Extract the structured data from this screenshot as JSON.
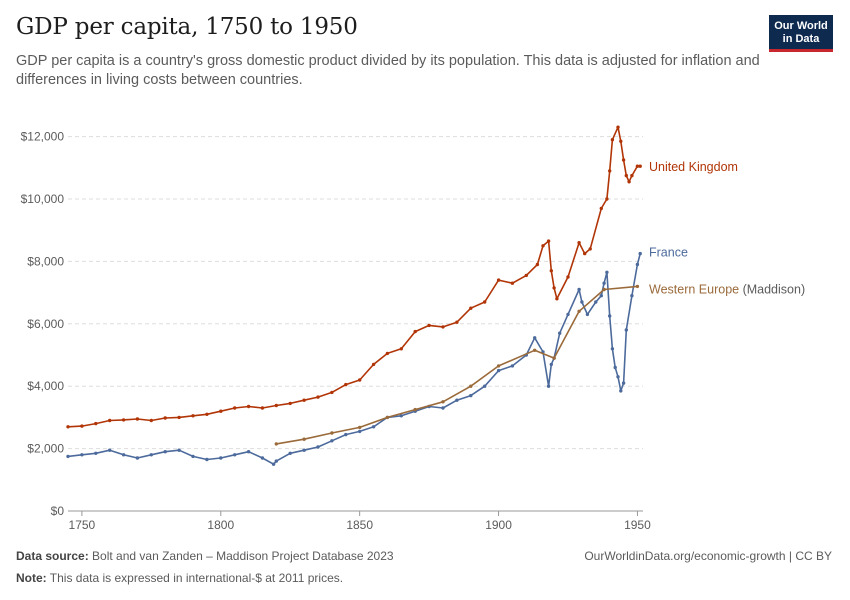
{
  "title": "GDP per capita, 1750 to 1950",
  "subtitle": "GDP per capita is a country's gross domestic product divided by its population. This data is adjusted for inflation and differences in living costs between countries.",
  "logo": {
    "line1": "Our World",
    "line2": "in Data"
  },
  "footer": {
    "source_label": "Data source:",
    "source_text": "Bolt and van Zanden – Maddison Project Database 2023",
    "note_label": "Note:",
    "note_text": "This data is expressed in international-$ at 2011 prices.",
    "link_text": "OurWorldinData.org/economic-growth | CC BY"
  },
  "chart_data": {
    "type": "line",
    "title": "GDP per capita, 1750 to 1950",
    "xlim": [
      1745,
      1952
    ],
    "ylim": [
      0,
      12500
    ],
    "x_ticks": [
      1750,
      1800,
      1850,
      1900,
      1950
    ],
    "y_ticks": [
      {
        "value": 0,
        "label": "$0"
      },
      {
        "value": 2000,
        "label": "$2,000"
      },
      {
        "value": 4000,
        "label": "$4,000"
      },
      {
        "value": 6000,
        "label": "$6,000"
      },
      {
        "value": 8000,
        "label": "$8,000"
      },
      {
        "value": 10000,
        "label": "$10,000"
      },
      {
        "value": 12000,
        "label": "$12,000"
      }
    ],
    "grid": "horizontal dashed",
    "legend": "inline labels at line ends (right)",
    "series": [
      {
        "name": "United Kingdom",
        "color": "#b13507",
        "points": [
          [
            1745,
            2700
          ],
          [
            1750,
            2720
          ],
          [
            1755,
            2800
          ],
          [
            1760,
            2900
          ],
          [
            1765,
            2920
          ],
          [
            1770,
            2950
          ],
          [
            1775,
            2900
          ],
          [
            1780,
            2980
          ],
          [
            1785,
            3000
          ],
          [
            1790,
            3050
          ],
          [
            1795,
            3100
          ],
          [
            1800,
            3200
          ],
          [
            1805,
            3300
          ],
          [
            1810,
            3350
          ],
          [
            1815,
            3300
          ],
          [
            1820,
            3380
          ],
          [
            1825,
            3450
          ],
          [
            1830,
            3550
          ],
          [
            1835,
            3650
          ],
          [
            1840,
            3800
          ],
          [
            1845,
            4050
          ],
          [
            1850,
            4200
          ],
          [
            1855,
            4700
          ],
          [
            1860,
            5050
          ],
          [
            1865,
            5200
          ],
          [
            1870,
            5750
          ],
          [
            1875,
            5950
          ],
          [
            1880,
            5900
          ],
          [
            1885,
            6050
          ],
          [
            1890,
            6500
          ],
          [
            1895,
            6700
          ],
          [
            1900,
            7400
          ],
          [
            1905,
            7300
          ],
          [
            1910,
            7550
          ],
          [
            1914,
            7900
          ],
          [
            1916,
            8500
          ],
          [
            1918,
            8650
          ],
          [
            1919,
            7700
          ],
          [
            1920,
            7150
          ],
          [
            1921,
            6800
          ],
          [
            1925,
            7500
          ],
          [
            1929,
            8600
          ],
          [
            1931,
            8250
          ],
          [
            1933,
            8400
          ],
          [
            1937,
            9700
          ],
          [
            1939,
            10000
          ],
          [
            1940,
            10900
          ],
          [
            1941,
            11900
          ],
          [
            1943,
            12300
          ],
          [
            1944,
            11850
          ],
          [
            1945,
            11250
          ],
          [
            1946,
            10750
          ],
          [
            1947,
            10550
          ],
          [
            1948,
            10750
          ],
          [
            1950,
            11050
          ],
          [
            1951,
            11050
          ]
        ]
      },
      {
        "name": "France",
        "color": "#4c6a9c",
        "points": [
          [
            1745,
            1750
          ],
          [
            1750,
            1800
          ],
          [
            1755,
            1850
          ],
          [
            1760,
            1950
          ],
          [
            1765,
            1800
          ],
          [
            1770,
            1700
          ],
          [
            1775,
            1800
          ],
          [
            1780,
            1900
          ],
          [
            1785,
            1950
          ],
          [
            1790,
            1750
          ],
          [
            1795,
            1650
          ],
          [
            1800,
            1700
          ],
          [
            1805,
            1800
          ],
          [
            1810,
            1900
          ],
          [
            1815,
            1700
          ],
          [
            1819,
            1500
          ],
          [
            1820,
            1600
          ],
          [
            1825,
            1850
          ],
          [
            1830,
            1950
          ],
          [
            1835,
            2050
          ],
          [
            1840,
            2250
          ],
          [
            1845,
            2450
          ],
          [
            1850,
            2550
          ],
          [
            1855,
            2700
          ],
          [
            1860,
            3000
          ],
          [
            1865,
            3050
          ],
          [
            1870,
            3200
          ],
          [
            1875,
            3350
          ],
          [
            1880,
            3300
          ],
          [
            1885,
            3550
          ],
          [
            1890,
            3700
          ],
          [
            1895,
            4000
          ],
          [
            1900,
            4500
          ],
          [
            1905,
            4650
          ],
          [
            1910,
            5000
          ],
          [
            1913,
            5550
          ],
          [
            1916,
            5100
          ],
          [
            1918,
            4000
          ],
          [
            1919,
            4700
          ],
          [
            1920,
            4900
          ],
          [
            1922,
            5700
          ],
          [
            1925,
            6300
          ],
          [
            1929,
            7100
          ],
          [
            1930,
            6700
          ],
          [
            1932,
            6300
          ],
          [
            1935,
            6700
          ],
          [
            1937,
            6900
          ],
          [
            1938,
            7300
          ],
          [
            1939,
            7650
          ],
          [
            1940,
            6250
          ],
          [
            1941,
            5200
          ],
          [
            1942,
            4600
          ],
          [
            1943,
            4300
          ],
          [
            1944,
            3850
          ],
          [
            1945,
            4100
          ],
          [
            1946,
            5800
          ],
          [
            1948,
            6900
          ],
          [
            1950,
            7900
          ],
          [
            1951,
            8250
          ]
        ]
      },
      {
        "name": "Western Europe (Maddison)",
        "color": "#9a6a3a",
        "points": [
          [
            1820,
            2150
          ],
          [
            1830,
            2300
          ],
          [
            1840,
            2500
          ],
          [
            1850,
            2680
          ],
          [
            1860,
            3000
          ],
          [
            1870,
            3250
          ],
          [
            1880,
            3500
          ],
          [
            1890,
            4000
          ],
          [
            1900,
            4650
          ],
          [
            1913,
            5150
          ],
          [
            1920,
            4900
          ],
          [
            1929,
            6400
          ],
          [
            1938,
            7100
          ],
          [
            1950,
            7200
          ]
        ]
      }
    ]
  }
}
